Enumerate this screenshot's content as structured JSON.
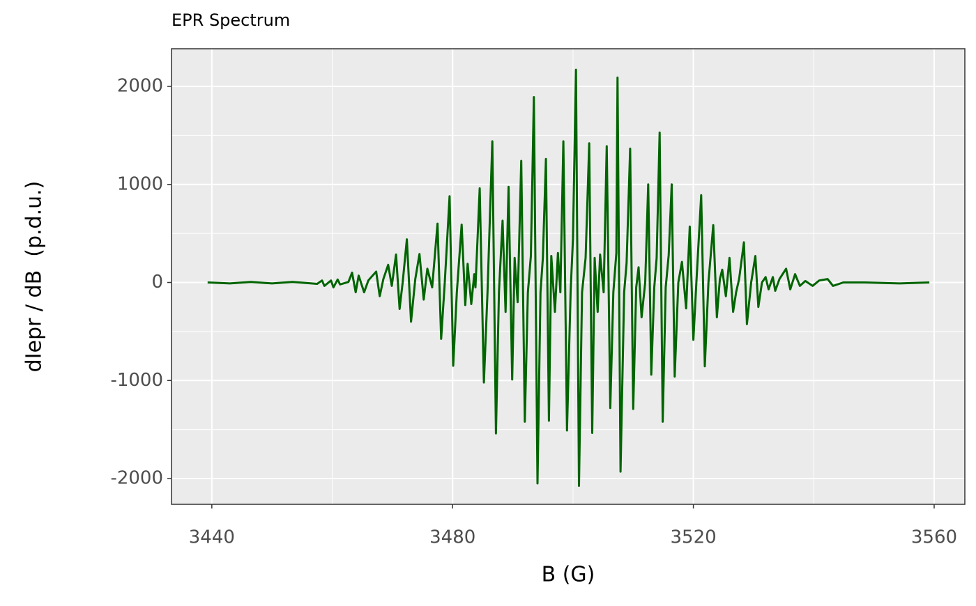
{
  "chart_data": {
    "type": "line",
    "title": "EPR Spectrum",
    "xlabel": "B (G)",
    "ylabel": "dIepr / dB  (p.d.u.)",
    "color": "#006400",
    "grid": true,
    "xlim": [
      3433.3,
      3565.1
    ],
    "xticks": [
      3440,
      3480,
      3520,
      3560
    ],
    "ylim": [
      -2263,
      2384
    ],
    "yticks": [
      -2000,
      -1000,
      0,
      1000,
      2000
    ],
    "x": [
      3439.3,
      3443.0,
      3446.5,
      3450.0,
      3453.4,
      3457.5,
      3458.3,
      3458.7,
      3459.8,
      3460.2,
      3460.9,
      3461.3,
      3462.7,
      3463.3,
      3463.9,
      3464.4,
      3465.3,
      3466.0,
      3466.7,
      3467.3,
      3467.9,
      3468.5,
      3469.3,
      3469.9,
      3470.6,
      3471.2,
      3471.7,
      3472.4,
      3473.1,
      3473.8,
      3474.5,
      3475.2,
      3475.8,
      3476.6,
      3477.5,
      3478.1,
      3478.7,
      3479.5,
      3480.1,
      3480.7,
      3481.5,
      3482.1,
      3482.5,
      3483.1,
      3483.6,
      3483.8,
      3484.5,
      3485.2,
      3485.8,
      3486.6,
      3487.2,
      3487.7,
      3488.3,
      3488.8,
      3489.3,
      3489.9,
      3490.3,
      3490.8,
      3491.4,
      3492.0,
      3492.5,
      3493.0,
      3493.5,
      3494.1,
      3494.6,
      3495.0,
      3495.5,
      3496.0,
      3496.4,
      3497.0,
      3497.5,
      3497.9,
      3498.4,
      3499.0,
      3499.6,
      3500.0,
      3500.5,
      3501.0,
      3501.5,
      3502.1,
      3502.7,
      3503.2,
      3503.6,
      3504.1,
      3504.5,
      3505.1,
      3505.6,
      3506.2,
      3506.7,
      3507.2,
      3507.4,
      3507.9,
      3508.5,
      3508.9,
      3509.5,
      3510.0,
      3510.5,
      3510.9,
      3511.4,
      3512.0,
      3512.5,
      3513.0,
      3513.5,
      3513.9,
      3514.4,
      3514.9,
      3515.4,
      3515.9,
      3516.4,
      3516.9,
      3517.5,
      3518.1,
      3518.8,
      3519.4,
      3520.0,
      3520.5,
      3521.3,
      3521.9,
      3522.5,
      3523.3,
      3523.9,
      3524.4,
      3524.8,
      3525.4,
      3526.0,
      3526.6,
      3527.1,
      3527.6,
      3528.4,
      3528.9,
      3529.6,
      3530.3,
      3530.8,
      3531.4,
      3532.0,
      3532.5,
      3533.2,
      3533.6,
      3534.3,
      3535.4,
      3536.1,
      3536.9,
      3537.7,
      3538.6,
      3539.8,
      3540.9,
      3542.3,
      3543.2,
      3544.9,
      3548.5,
      3554.3,
      3559.2
    ],
    "values": [
      0,
      -10,
      5,
      -10,
      5,
      -14,
      20,
      -35,
      20,
      -50,
      30,
      -20,
      5,
      100,
      -100,
      70,
      -100,
      20,
      70,
      110,
      -140,
      35,
      180,
      -35,
      285,
      -270,
      0,
      440,
      -400,
      35,
      290,
      -175,
      140,
      -50,
      600,
      -575,
      0,
      880,
      -850,
      -100,
      590,
      -230,
      190,
      -220,
      85,
      -50,
      960,
      -1020,
      -100,
      1440,
      -1540,
      -100,
      630,
      -300,
      975,
      -990,
      250,
      -200,
      1240,
      -1420,
      -100,
      270,
      1890,
      -2050,
      -100,
      250,
      1260,
      -1410,
      270,
      -300,
      300,
      -100,
      1440,
      -1510,
      -100,
      450,
      2170,
      -2075,
      -100,
      250,
      1420,
      -1535,
      250,
      -300,
      285,
      -100,
      1390,
      -1280,
      -100,
      300,
      2090,
      -1930,
      -100,
      200,
      1365,
      -1290,
      -50,
      155,
      -355,
      0,
      1000,
      -940,
      -50,
      250,
      1530,
      -1420,
      -50,
      280,
      1000,
      -960,
      0,
      210,
      -265,
      570,
      -585,
      0,
      890,
      -855,
      0,
      585,
      -355,
      35,
      130,
      -140,
      250,
      -300,
      -100,
      35,
      410,
      -425,
      0,
      270,
      -250,
      0,
      55,
      -70,
      55,
      -85,
      35,
      140,
      -70,
      85,
      -35,
      15,
      -35,
      20,
      35,
      -35,
      0,
      0,
      -10,
      0
    ]
  }
}
